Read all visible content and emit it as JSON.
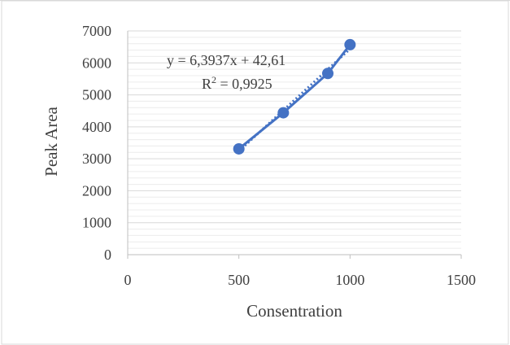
{
  "chart_data": {
    "type": "scatter",
    "title": "",
    "xlabel": "Consentration",
    "ylabel": "Peak Area",
    "xlim": [
      0,
      1500
    ],
    "ylim": [
      0,
      7000
    ],
    "x_ticks": [
      0,
      500,
      1000,
      1500
    ],
    "y_ticks": [
      0,
      1000,
      2000,
      3000,
      4000,
      5000,
      6000,
      7000
    ],
    "grid": {
      "horizontal_major": true,
      "horizontal_minor": true,
      "vertical": false
    },
    "series": [
      {
        "x": [
          500,
          700,
          900,
          1000
        ],
        "y": [
          3310,
          4440,
          5670,
          6570
        ],
        "color": "#4472C4",
        "marker": "circle",
        "connected": true
      }
    ],
    "trendline": {
      "type": "linear",
      "slope": 6.3937,
      "intercept": 42.61,
      "equation_label": "y = 6,3937x + 42,61",
      "r2_prefix": "R",
      "r2_sup": "2",
      "r2_value": " = 0,9925",
      "style": "dotted",
      "color": "#4472C4"
    },
    "colors": {
      "series": "#4472C4",
      "axis": "#bfbfbf",
      "grid": "#d9d9d9",
      "text": "#404040",
      "frame": "#d9d9d9"
    }
  }
}
